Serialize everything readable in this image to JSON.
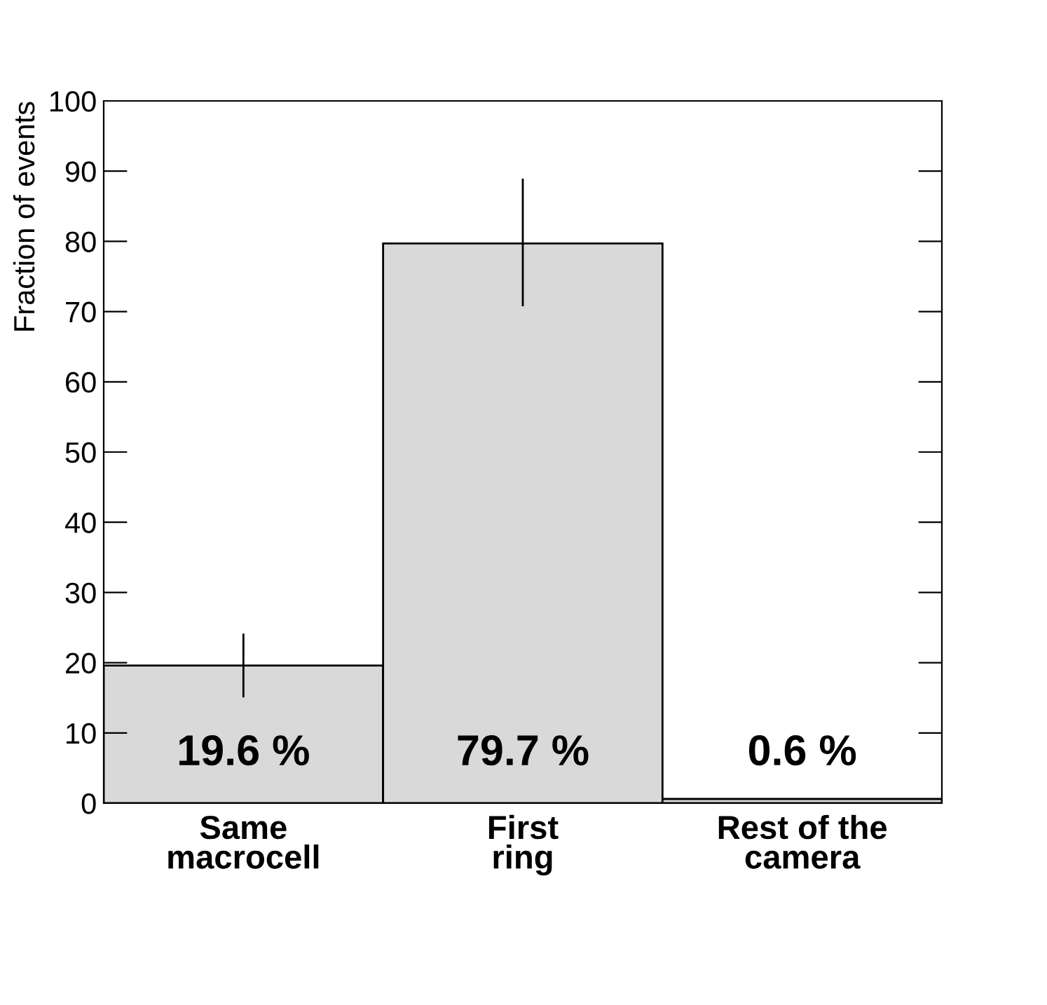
{
  "chart_data": {
    "type": "bar",
    "ylabel": "Fraction of events",
    "categories": [
      "Same\nmacrocell",
      "First\nring",
      "Rest of the\ncamera"
    ],
    "values": [
      19.6,
      79.7,
      0.6
    ],
    "errors": [
      [
        15.2,
        24.0
      ],
      [
        70.9,
        88.8
      ],
      null
    ],
    "value_labels": [
      "19.6 %",
      "79.7 %",
      "0.6 %"
    ],
    "color": "#d9d9d9",
    "ylim": [
      0,
      100
    ],
    "yticks": [
      0,
      10,
      20,
      30,
      40,
      50,
      60,
      70,
      80,
      90,
      100
    ],
    "grid": false,
    "legend": false
  }
}
